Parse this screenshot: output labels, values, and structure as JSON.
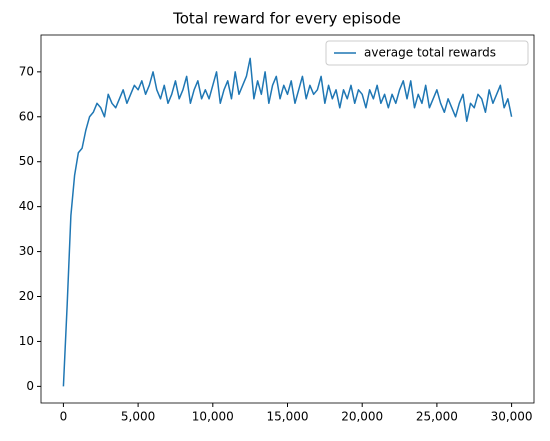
{
  "chart_data": {
    "type": "line",
    "title": "Total reward for every episode",
    "x": [
      0,
      250,
      500,
      750,
      1000,
      1250,
      1500,
      1750,
      2000,
      2250,
      2500,
      2750,
      3000,
      3250,
      3500,
      3750,
      4000,
      4250,
      4500,
      4750,
      5000,
      5250,
      5500,
      5750,
      6000,
      6250,
      6500,
      6750,
      7000,
      7250,
      7500,
      7750,
      8000,
      8250,
      8500,
      8750,
      9000,
      9250,
      9500,
      9750,
      10000,
      10250,
      10500,
      10750,
      11000,
      11250,
      11500,
      11750,
      12000,
      12250,
      12500,
      12750,
      13000,
      13250,
      13500,
      13750,
      14000,
      14250,
      14500,
      14750,
      15000,
      15250,
      15500,
      15750,
      16000,
      16250,
      16500,
      16750,
      17000,
      17250,
      17500,
      17750,
      18000,
      18250,
      18500,
      18750,
      19000,
      19250,
      19500,
      19750,
      20000,
      20250,
      20500,
      20750,
      21000,
      21250,
      21500,
      21750,
      22000,
      22250,
      22500,
      22750,
      23000,
      23250,
      23500,
      23750,
      24000,
      24250,
      24500,
      24750,
      25000,
      25250,
      25500,
      25750,
      26000,
      26250,
      26500,
      26750,
      27000,
      27250,
      27500,
      27750,
      28000,
      28250,
      28500,
      28750,
      29000,
      29250,
      29500,
      29750,
      30000
    ],
    "series": [
      {
        "name": "average total rewards",
        "color": "#1f77b4",
        "values": [
          0,
          18,
          38,
          47,
          52,
          53,
          57,
          60,
          61,
          63,
          62,
          60,
          65,
          63,
          62,
          64,
          66,
          63,
          65,
          67,
          66,
          68,
          65,
          67,
          70,
          66,
          64,
          67,
          63,
          65,
          68,
          64,
          66,
          69,
          63,
          66,
          68,
          64,
          66,
          64,
          67,
          70,
          63,
          66,
          68,
          64,
          70,
          65,
          67,
          69,
          73,
          64,
          68,
          65,
          70,
          63,
          67,
          69,
          64,
          67,
          65,
          68,
          63,
          66,
          69,
          64,
          67,
          65,
          66,
          69,
          63,
          67,
          64,
          66,
          62,
          66,
          64,
          67,
          63,
          66,
          65,
          62,
          66,
          64,
          67,
          63,
          65,
          62,
          65,
          63,
          66,
          68,
          64,
          68,
          62,
          65,
          63,
          67,
          62,
          64,
          66,
          63,
          61,
          64,
          62,
          60,
          63,
          65,
          59,
          63,
          62,
          65,
          64,
          61,
          66,
          63,
          65,
          67,
          62,
          64,
          60
        ]
      }
    ],
    "xlim": [
      -1500,
      31500
    ],
    "ylim": [
      -3.7,
      78.2
    ],
    "xticks": [
      0,
      {
        "value": 5000,
        "label": "5,000"
      },
      {
        "value": 10000,
        "label": "10,000"
      },
      {
        "value": 15000,
        "label": "15,000"
      },
      {
        "value": 20000,
        "label": "20,000"
      },
      {
        "value": 25000,
        "label": "25,000"
      },
      {
        "value": 30000,
        "label": "30,000"
      }
    ],
    "yticks": [
      0,
      10,
      20,
      30,
      40,
      50,
      60,
      70
    ],
    "legend": "upper right"
  }
}
